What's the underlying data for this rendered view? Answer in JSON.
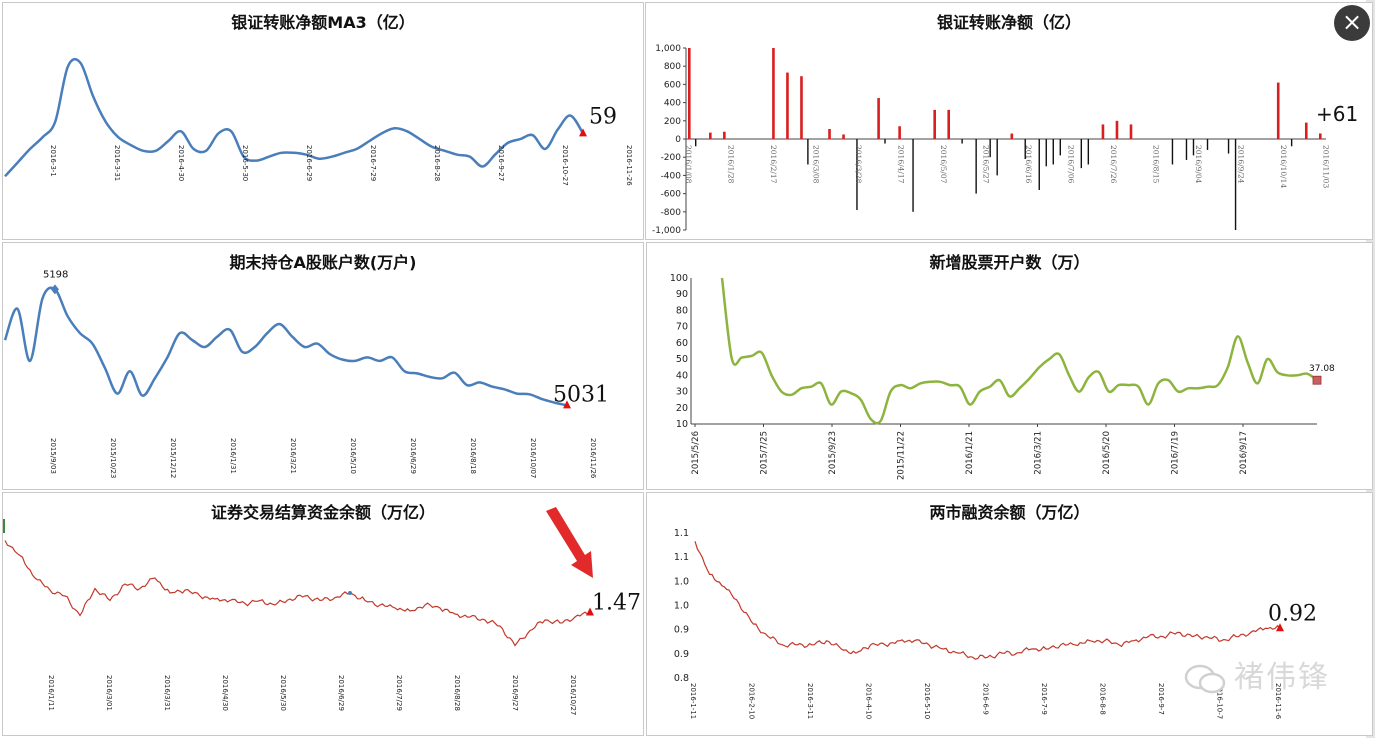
{
  "close_icon": "×",
  "watermark": {
    "icon": "wechat-icon",
    "text": "褚伟锋"
  },
  "colors": {
    "blue": "#4a7ebb",
    "green": "#8cb43e",
    "red": "#c0392b",
    "bar_red": "#d81e1e",
    "bar_black": "#111111",
    "marker_red": "#e01010"
  },
  "chart_data": [
    {
      "id": "ma3",
      "type": "line",
      "title": "银证转账净额MA3（亿）",
      "end_label": "59",
      "x_ticks": [
        "2016-3-1",
        "2016-3-31",
        "2016-4-30",
        "2016-5-30",
        "2016-6-29",
        "2016-7-29",
        "2016-8-28",
        "2016-9-27",
        "2016-10-27",
        "2016-11-26"
      ],
      "ylim": [
        -220,
        470
      ],
      "y": [
        -160,
        -90,
        -20,
        40,
        120,
        400,
        420,
        250,
        120,
        40,
        0,
        -30,
        -30,
        20,
        70,
        -20,
        -30,
        60,
        70,
        -60,
        -80,
        -60,
        -40,
        -40,
        -50,
        -70,
        -60,
        -40,
        -20,
        20,
        60,
        85,
        70,
        30,
        -10,
        -30,
        -50,
        -60,
        -110,
        -50,
        10,
        30,
        50,
        -20,
        80,
        150,
        59
      ],
      "marker": "triangle-end",
      "color": "#4a7ebb"
    },
    {
      "id": "net",
      "type": "bar",
      "title": "银证转账净额（亿）",
      "end_label": "+61",
      "y_ticks": [
        "1,000",
        "800",
        "600",
        "400",
        "200",
        "0",
        "-200",
        "-400",
        "-600",
        "-800",
        "-1,000"
      ],
      "ylim": [
        -1000,
        1000
      ],
      "x_ticks": [
        "2016/1/08",
        "2016/1/28",
        "2016/2/17",
        "2016/3/08",
        "2016/3/28",
        "2016/4/17",
        "2016/5/07",
        "2016/5/27",
        "2016/6/16",
        "2016/7/06",
        "2016/7/26",
        "2016/8/15",
        "2016/9/04",
        "2016/9/24",
        "2016/10/14",
        "2016/11/03"
      ],
      "values": [
        1000,
        -80,
        0,
        70,
        0,
        80,
        0,
        0,
        0,
        0,
        0,
        0,
        1000,
        0,
        730,
        0,
        690,
        -280,
        0,
        0,
        110,
        0,
        50,
        0,
        -780,
        0,
        0,
        450,
        -50,
        0,
        140,
        0,
        -800,
        0,
        0,
        320,
        0,
        320,
        0,
        -50,
        0,
        -600,
        0,
        -200,
        -400,
        0,
        60,
        0,
        -220,
        0,
        -560,
        -300,
        -280,
        -180,
        0,
        0,
        -320,
        -280,
        0,
        160,
        0,
        200,
        0,
        160,
        0,
        0,
        0,
        0,
        0,
        -280,
        0,
        -230,
        -180,
        0,
        -120,
        0,
        0,
        -160,
        -1000,
        0,
        0,
        0,
        0,
        0,
        620,
        0,
        -80,
        0,
        180,
        0,
        61
      ],
      "pos_color": "#d81e1e",
      "neg_color": "#111111"
    },
    {
      "id": "accounts",
      "type": "line",
      "title": "期末持仓A股账户数(万户)",
      "peak_label": "5198",
      "end_label": "5031",
      "x_ticks": [
        "2015/9/03",
        "2015/10/23",
        "2015/12/12",
        "2016/1/31",
        "2016/3/21",
        "2016/5/10",
        "2016/6/29",
        "2016/8/18",
        "2016/10/07",
        "2016/11/26"
      ],
      "ylim": [
        5020,
        5200
      ],
      "y": [
        5125,
        5170,
        5095,
        5185,
        5198,
        5160,
        5135,
        5120,
        5085,
        5048,
        5080,
        5045,
        5070,
        5100,
        5135,
        5125,
        5115,
        5130,
        5140,
        5108,
        5115,
        5135,
        5148,
        5130,
        5115,
        5120,
        5105,
        5097,
        5095,
        5100,
        5095,
        5100,
        5080,
        5077,
        5072,
        5070,
        5078,
        5060,
        5064,
        5058,
        5054,
        5048,
        5047,
        5040,
        5035,
        5031
      ],
      "color": "#4a7ebb"
    },
    {
      "id": "newacct",
      "type": "line",
      "title": "新增股票开户数（万）",
      "end_label": "37.08",
      "y_ticks": [
        "100",
        "90",
        "80",
        "70",
        "60",
        "50",
        "40",
        "30",
        "20",
        "10"
      ],
      "ylim": [
        10,
        100
      ],
      "x_ticks": [
        "2015/5/26",
        "2015/7/25",
        "2015/9/23",
        "2015/11/22",
        "2016/1/21",
        "2016/3/21",
        "2016/5/20",
        "2016/7/19",
        "2016/9/17"
      ],
      "y": [
        100,
        50,
        51,
        52,
        54,
        40,
        30,
        28,
        32,
        33,
        35,
        22,
        30,
        29,
        25,
        13,
        12,
        30,
        34,
        32,
        35,
        36,
        36,
        34,
        33,
        22,
        30,
        33,
        37,
        27,
        32,
        38,
        45,
        50,
        53,
        40,
        30,
        39,
        42,
        30,
        34,
        34,
        33,
        22,
        35,
        37,
        30,
        32,
        32,
        33,
        34,
        45,
        64,
        48,
        35,
        50,
        42,
        40,
        40,
        41,
        37
      ],
      "color": "#8cb43e"
    },
    {
      "id": "settle",
      "type": "line",
      "title": "证券交易结算资金余额（万亿）",
      "end_label": "1.47",
      "x_ticks": [
        "2016/1/11",
        "2016/3/01",
        "2016/3/31",
        "2016/4/30",
        "2016/5/30",
        "2016/6/29",
        "2016/7/29",
        "2016/8/28",
        "2016/9/27",
        "2016/10/27"
      ],
      "ylim": [
        1.1,
        2.0
      ],
      "y": [
        1.95,
        1.85,
        1.7,
        1.62,
        1.58,
        1.45,
        1.63,
        1.55,
        1.66,
        1.63,
        1.7,
        1.6,
        1.62,
        1.58,
        1.56,
        1.55,
        1.53,
        1.55,
        1.52,
        1.56,
        1.58,
        1.55,
        1.57,
        1.6,
        1.55,
        1.52,
        1.5,
        1.48,
        1.52,
        1.5,
        1.46,
        1.44,
        1.42,
        1.38,
        1.25,
        1.35,
        1.42,
        1.4,
        1.44,
        1.47
      ],
      "color": "#c0392b"
    },
    {
      "id": "margin",
      "type": "line",
      "title": "两市融资余额（万亿）",
      "end_label": "0.92",
      "y_ticks": [
        "1.1",
        "1.1",
        "1.0",
        "1.0",
        "0.9",
        "0.9",
        "0.8"
      ],
      "ylim": [
        0.8,
        1.15
      ],
      "x_ticks": [
        "2016-1-11",
        "2016-2-10",
        "2016-3-11",
        "2016-4-10",
        "2016-5-10",
        "2016-6-9",
        "2016-7-9",
        "2016-8-8",
        "2016-9-7",
        "2016-10-7",
        "2016-11-6"
      ],
      "y": [
        1.13,
        1.05,
        1.02,
        0.98,
        0.93,
        0.9,
        0.88,
        0.88,
        0.88,
        0.89,
        0.87,
        0.86,
        0.88,
        0.88,
        0.89,
        0.89,
        0.88,
        0.87,
        0.86,
        0.85,
        0.85,
        0.86,
        0.86,
        0.87,
        0.87,
        0.88,
        0.88,
        0.89,
        0.89,
        0.88,
        0.89,
        0.9,
        0.9,
        0.91,
        0.9,
        0.9,
        0.89,
        0.9,
        0.91,
        0.92,
        0.92
      ],
      "color": "#c0392b"
    }
  ]
}
